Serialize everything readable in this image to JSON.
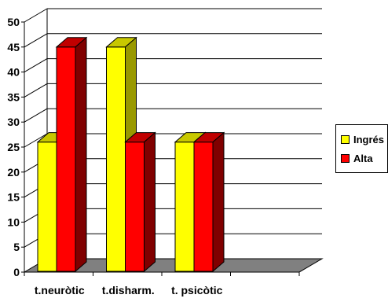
{
  "chart_data": {
    "type": "bar",
    "categories": [
      "t.neuròtic",
      "t.disharm.",
      "t. psicòtic",
      ""
    ],
    "series": [
      {
        "name": "Ingrés",
        "values": [
          26,
          45,
          26,
          null
        ],
        "color": "#ffff00",
        "top_color": "#c8c800",
        "side_color": "#999900"
      },
      {
        "name": "Alta",
        "values": [
          45,
          26,
          26,
          null
        ],
        "color": "#ff0000",
        "top_color": "#c00000",
        "side_color": "#800000"
      }
    ],
    "ylim": [
      0,
      50
    ],
    "yticks": [
      "0",
      "5",
      "10",
      "15",
      "20",
      "25",
      "30",
      "35",
      "40",
      "45",
      "50"
    ],
    "grid": true,
    "style": "3d",
    "floor_color": "#808080",
    "legend_position": "right"
  }
}
